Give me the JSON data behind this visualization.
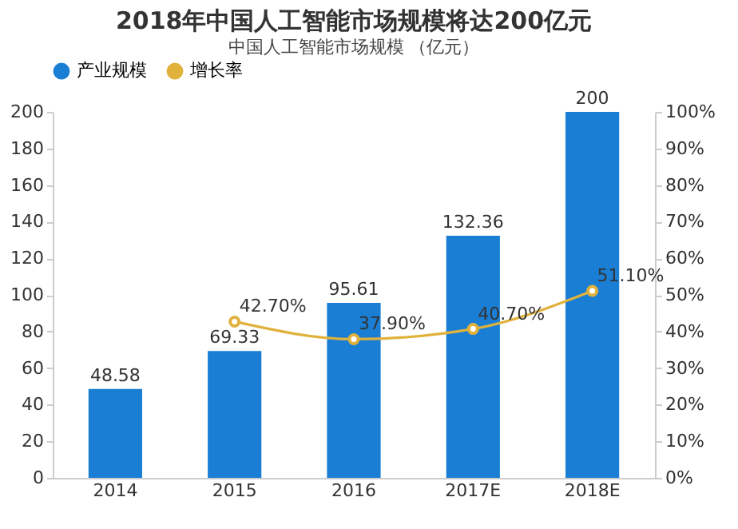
{
  "chart_data": {
    "type": "bar",
    "title": "2018年中国人工智能市场规模将达200亿元",
    "subtitle": "中国人工智能市场规模 （亿元）",
    "categories": [
      "2014",
      "2015",
      "2016",
      "2017E",
      "2018E"
    ],
    "series": [
      {
        "name": "产业规模",
        "color": "#1a7fd4",
        "values": [
          48.58,
          69.33,
          95.61,
          132.36,
          200
        ],
        "data_labels": true
      },
      {
        "name": "增长率",
        "type": "line",
        "axis": "y2",
        "color": "#e0b23c",
        "values": [
          null,
          42.7,
          37.9,
          40.7,
          51.1
        ],
        "value_labels": [
          null,
          "42.70%",
          "37.90%",
          "40.70%",
          "51.10%"
        ],
        "marker": "circle"
      }
    ],
    "ylim": [
      0,
      200
    ],
    "yticks": [
      0,
      20,
      40,
      60,
      80,
      100,
      120,
      140,
      160,
      180,
      200
    ],
    "y2lim": [
      0,
      100
    ],
    "y2ticks": [
      {
        "value": 0,
        "label": "0%"
      },
      {
        "value": 10,
        "label": "10%"
      },
      {
        "value": 20,
        "label": "20%"
      },
      {
        "value": 30,
        "label": "30%"
      },
      {
        "value": 40,
        "label": "40%"
      },
      {
        "value": 50,
        "label": "50%"
      },
      {
        "value": 60,
        "label": "60%"
      },
      {
        "value": 70,
        "label": "70%"
      },
      {
        "value": 80,
        "label": "80%"
      },
      {
        "value": 90,
        "label": "90%"
      },
      {
        "value": 100,
        "label": "100%"
      }
    ],
    "grid": false,
    "legend": "top"
  }
}
